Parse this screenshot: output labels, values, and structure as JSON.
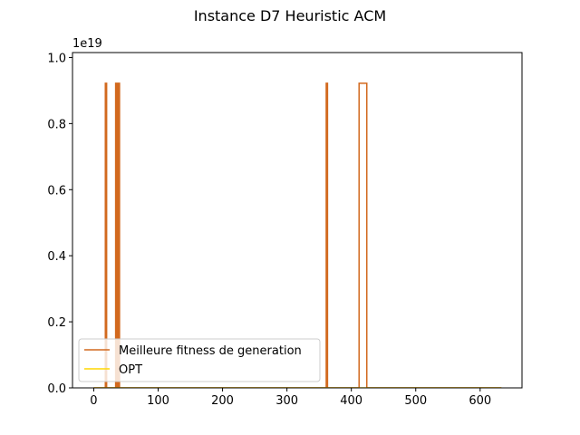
{
  "chart_data": {
    "type": "line",
    "title": "Instance D7 Heuristic ACM",
    "xlabel": "",
    "ylabel": "",
    "y_offset_label": "1e19",
    "xlim": [
      -33,
      665
    ],
    "ylim": [
      0,
      1.015
    ],
    "x_ticks": [
      0,
      100,
      200,
      300,
      400,
      500,
      600
    ],
    "y_ticks": [
      0.0,
      0.2,
      0.4,
      0.6,
      0.8,
      1.0
    ],
    "y_tick_labels": [
      "0.0",
      "0.2",
      "0.4",
      "0.6",
      "0.8",
      "1.0"
    ],
    "grid": false,
    "legend_position": "lower-left",
    "series": [
      {
        "name": "Meilleure fitness de generation",
        "color": "#d2691e",
        "x": [
          0,
          18,
          18,
          20,
          20,
          34,
          34,
          36,
          36,
          38,
          38,
          40,
          40,
          361,
          361,
          363,
          363,
          412,
          412,
          424,
          424,
          633
        ],
        "y": [
          0,
          0,
          0.922,
          0.922,
          0,
          0,
          0.922,
          0.922,
          0,
          0,
          0.922,
          0.922,
          0,
          0,
          0.922,
          0.922,
          0,
          0,
          0.922,
          0.922,
          0,
          0
        ]
      },
      {
        "name": "OPT",
        "color": "#ffd700",
        "x": [
          0,
          633
        ],
        "y": [
          0,
          0
        ]
      }
    ]
  }
}
